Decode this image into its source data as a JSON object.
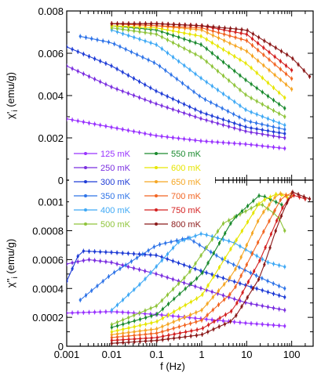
{
  "chart_data": {
    "type": "line",
    "x_scale": "log",
    "xlim": [
      0.001,
      300
    ],
    "xlabel": "f (Hz)",
    "x_ticks": [
      {
        "value": 0.001,
        "label": "0.001"
      },
      {
        "value": 0.01,
        "label": "0.01"
      },
      {
        "value": 0.1,
        "label": "0.1"
      },
      {
        "value": 1,
        "label": "1"
      },
      {
        "value": 10,
        "label": "10"
      },
      {
        "value": 100,
        "label": "100"
      }
    ],
    "panels": [
      {
        "id": "real",
        "ylabel": "χ'i (emu/g)",
        "ylabel_main": "χ'",
        "ylabel_sub": "i",
        "ylabel_unit": " (emu/g)",
        "ylim": [
          0,
          0.008
        ],
        "y_ticks": [
          {
            "value": 0,
            "label": "0"
          },
          {
            "value": 0.002,
            "label": "0.002"
          },
          {
            "value": 0.004,
            "label": "0.004"
          },
          {
            "value": 0.006,
            "label": "0.006"
          },
          {
            "value": 0.008,
            "label": "0.008"
          }
        ],
        "series": [
          {
            "name": "125 mK",
            "color": "#9933ff",
            "points": [
              [
                0.001,
                0.0029
              ],
              [
                0.01,
                0.0025
              ],
              [
                0.1,
                0.0021
              ],
              [
                1,
                0.00185
              ],
              [
                10,
                0.0017
              ],
              [
                70,
                0.0015
              ]
            ]
          },
          {
            "name": "250 mK",
            "color": "#7a2ee0",
            "points": [
              [
                0.001,
                0.0054
              ],
              [
                0.01,
                0.0044
              ],
              [
                0.1,
                0.0036
              ],
              [
                1,
                0.0029
              ],
              [
                10,
                0.0023
              ],
              [
                70,
                0.002
              ]
            ]
          },
          {
            "name": "300 mK",
            "color": "#1f3cd6",
            "points": [
              [
                0.001,
                0.0063
              ],
              [
                0.01,
                0.0054
              ],
              [
                0.1,
                0.0042
              ],
              [
                1,
                0.0032
              ],
              [
                10,
                0.0025
              ],
              [
                70,
                0.0022
              ]
            ]
          },
          {
            "name": "350 mK",
            "color": "#2f74e8",
            "points": [
              [
                0.002,
                0.0068
              ],
              [
                0.01,
                0.0065
              ],
              [
                0.1,
                0.0055
              ],
              [
                1,
                0.0039
              ],
              [
                10,
                0.0028
              ],
              [
                70,
                0.0024
              ]
            ]
          },
          {
            "name": "400 mK",
            "color": "#3fa9f5",
            "points": [
              [
                0.01,
                0.0071
              ],
              [
                0.1,
                0.0064
              ],
              [
                1,
                0.0048
              ],
              [
                10,
                0.0033
              ],
              [
                70,
                0.0026
              ]
            ]
          },
          {
            "name": "500 mK",
            "color": "#8fc43a",
            "points": [
              [
                0.01,
                0.0072
              ],
              [
                0.1,
                0.0069
              ],
              [
                1,
                0.0058
              ],
              [
                10,
                0.004
              ],
              [
                70,
                0.003
              ]
            ]
          },
          {
            "name": "550 mK",
            "color": "#1a8a2e",
            "points": [
              [
                0.01,
                0.0073
              ],
              [
                0.1,
                0.0071
              ],
              [
                1,
                0.0064
              ],
              [
                10,
                0.0047
              ],
              [
                70,
                0.0034
              ]
            ]
          },
          {
            "name": "600 mK",
            "color": "#e6e600",
            "points": [
              [
                0.01,
                0.0073
              ],
              [
                0.1,
                0.0072
              ],
              [
                1,
                0.0068
              ],
              [
                10,
                0.0055
              ],
              [
                70,
                0.0039
              ]
            ]
          },
          {
            "name": "650 mK",
            "color": "#f5a623",
            "points": [
              [
                0.01,
                0.0074
              ],
              [
                0.1,
                0.0073
              ],
              [
                1,
                0.0071
              ],
              [
                10,
                0.0061
              ],
              [
                100,
                0.0043
              ]
            ]
          },
          {
            "name": "700 mK",
            "color": "#f26522",
            "points": [
              [
                0.01,
                0.0074
              ],
              [
                0.1,
                0.0073
              ],
              [
                1,
                0.0072
              ],
              [
                10,
                0.0066
              ],
              [
                100,
                0.0048
              ]
            ]
          },
          {
            "name": "750 mK",
            "color": "#d42020",
            "points": [
              [
                0.01,
                0.0074
              ],
              [
                0.1,
                0.0074
              ],
              [
                1,
                0.0073
              ],
              [
                10,
                0.0069
              ],
              [
                100,
                0.0052
              ]
            ]
          },
          {
            "name": "800 mK",
            "color": "#8b1a1a",
            "points": [
              [
                0.01,
                0.0074
              ],
              [
                0.1,
                0.0074
              ],
              [
                1,
                0.0073
              ],
              [
                10,
                0.0071
              ],
              [
                100,
                0.0058
              ],
              [
                250,
                0.0049
              ]
            ]
          }
        ]
      },
      {
        "id": "imag",
        "ylabel": "χ''i (emu/g)",
        "ylabel_main": "χ''",
        "ylabel_sub": "i",
        "ylabel_unit": " (emu/g)",
        "ylim": [
          0,
          0.00115
        ],
        "y_ticks": [
          {
            "value": 0,
            "label": "0"
          },
          {
            "value": 0.0002,
            "label": "0.0002"
          },
          {
            "value": 0.0004,
            "label": "0.0004"
          },
          {
            "value": 0.0006,
            "label": "0.0006"
          },
          {
            "value": 0.0008,
            "label": "0.0008"
          },
          {
            "value": 0.001,
            "label": "0.001"
          }
        ],
        "series": [
          {
            "name": "125 mK",
            "color": "#9933ff",
            "points": [
              [
                0.001,
                0.00023
              ],
              [
                0.01,
                0.00024
              ],
              [
                0.1,
                0.00022
              ],
              [
                1,
                0.00019
              ],
              [
                10,
                0.00016
              ],
              [
                70,
                0.00014
              ]
            ]
          },
          {
            "name": "250 mK",
            "color": "#7a2ee0",
            "points": [
              [
                0.001,
                0.00057
              ],
              [
                0.003,
                0.0006
              ],
              [
                0.01,
                0.00058
              ],
              [
                0.1,
                0.0005
              ],
              [
                1,
                0.0004
              ],
              [
                10,
                0.0003
              ],
              [
                70,
                0.00025
              ]
            ]
          },
          {
            "name": "300 mK",
            "color": "#1f3cd6",
            "points": [
              [
                0.001,
                0.00045
              ],
              [
                0.002,
                0.00066
              ],
              [
                0.01,
                0.00065
              ],
              [
                0.1,
                0.00063
              ],
              [
                1,
                0.00052
              ],
              [
                10,
                0.00042
              ],
              [
                70,
                0.00034
              ]
            ]
          },
          {
            "name": "350 mK",
            "color": "#2f74e8",
            "points": [
              [
                0.002,
                0.00032
              ],
              [
                0.01,
                0.0005
              ],
              [
                0.1,
                0.0007
              ],
              [
                0.5,
                0.00075
              ],
              [
                3,
                0.0006
              ],
              [
                30,
                0.00045
              ],
              [
                70,
                0.0004
              ]
            ]
          },
          {
            "name": "400 mK",
            "color": "#3fa9f5",
            "points": [
              [
                0.01,
                0.00025
              ],
              [
                0.05,
                0.00045
              ],
              [
                0.3,
                0.00072
              ],
              [
                1,
                0.00078
              ],
              [
                5,
                0.00072
              ],
              [
                30,
                0.00058
              ],
              [
                70,
                0.00055
              ]
            ]
          },
          {
            "name": "500 mK",
            "color": "#8fc43a",
            "points": [
              [
                0.01,
                0.00015
              ],
              [
                0.1,
                0.00028
              ],
              [
                0.5,
                0.0005
              ],
              [
                3,
                0.00085
              ],
              [
                20,
                0.00099
              ],
              [
                50,
                0.0009
              ],
              [
                70,
                0.0008
              ]
            ]
          },
          {
            "name": "550 mK",
            "color": "#1a8a2e",
            "points": [
              [
                0.01,
                0.00013
              ],
              [
                0.1,
                0.00022
              ],
              [
                1,
                0.0005
              ],
              [
                5,
                0.00088
              ],
              [
                20,
                0.00105
              ],
              [
                60,
                0.00098
              ]
            ]
          },
          {
            "name": "600 mK",
            "color": "#e6e600",
            "points": [
              [
                0.01,
                0.0001
              ],
              [
                0.1,
                0.00017
              ],
              [
                1,
                0.00035
              ],
              [
                5,
                0.0007
              ],
              [
                20,
                0.001
              ],
              [
                50,
                0.00106
              ],
              [
                80,
                0.00103
              ]
            ]
          },
          {
            "name": "650 mK",
            "color": "#f5a623",
            "points": [
              [
                0.01,
                8e-05
              ],
              [
                0.1,
                0.00012
              ],
              [
                1,
                0.00025
              ],
              [
                5,
                0.0005
              ],
              [
                20,
                0.0009
              ],
              [
                50,
                0.00106
              ],
              [
                100,
                0.00104
              ]
            ]
          },
          {
            "name": "700 mK",
            "color": "#f26522",
            "points": [
              [
                0.01,
                6e-05
              ],
              [
                0.1,
                9e-05
              ],
              [
                1,
                0.00018
              ],
              [
                5,
                0.00038
              ],
              [
                20,
                0.00075
              ],
              [
                60,
                0.00103
              ],
              [
                100,
                0.00106
              ]
            ]
          },
          {
            "name": "750 mK",
            "color": "#d42020",
            "points": [
              [
                0.01,
                4e-05
              ],
              [
                0.1,
                6e-05
              ],
              [
                1,
                0.00012
              ],
              [
                5,
                0.00025
              ],
              [
                20,
                0.0006
              ],
              [
                60,
                0.00095
              ],
              [
                100,
                0.00105
              ],
              [
                200,
                0.00102
              ]
            ]
          },
          {
            "name": "800 mK",
            "color": "#8b1a1a",
            "points": [
              [
                0.01,
                2e-05
              ],
              [
                0.1,
                4e-05
              ],
              [
                1,
                8e-05
              ],
              [
                5,
                0.00018
              ],
              [
                20,
                0.00048
              ],
              [
                50,
                0.00085
              ],
              [
                100,
                0.00107
              ],
              [
                250,
                0.00102
              ]
            ]
          }
        ]
      }
    ]
  }
}
